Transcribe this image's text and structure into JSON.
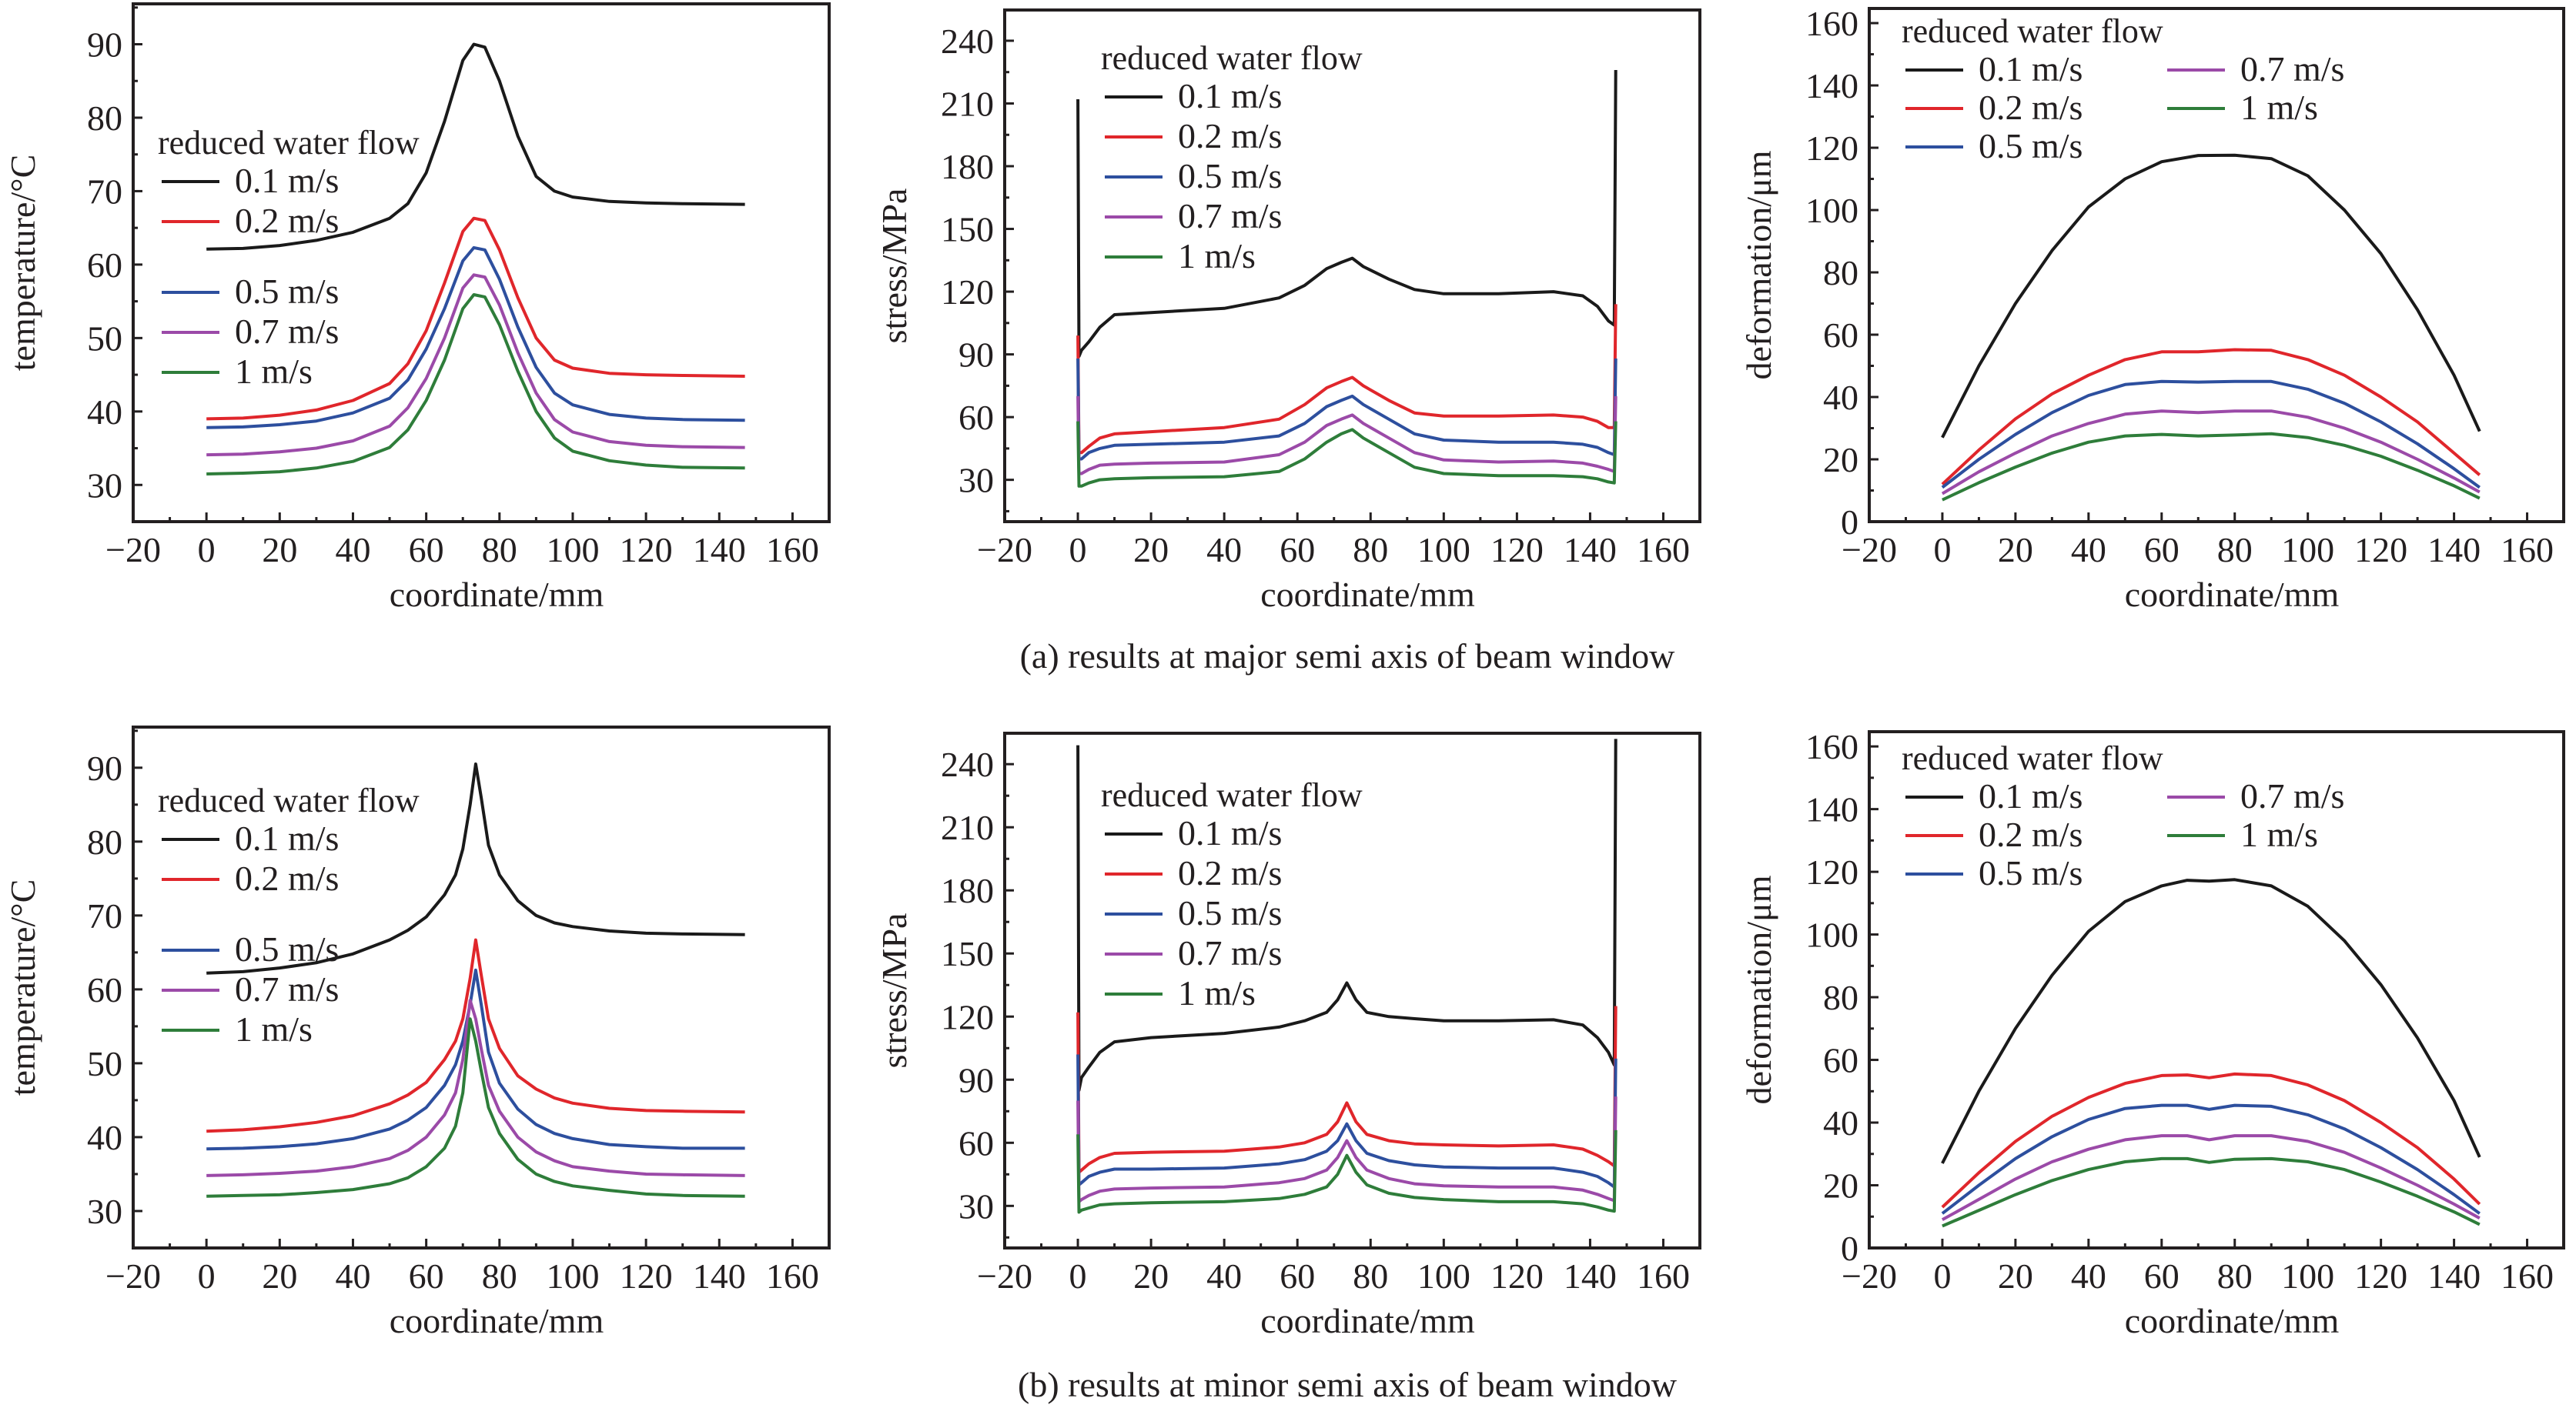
{
  "figure": {
    "captions": [
      "(a) results at major semi axis of beam window",
      "(b) results at minor semi axis of beam window"
    ]
  },
  "series_colors": {
    "0.1 m/s": "#1a1a1a",
    "0.2 m/s": "#e0262b",
    "0.5 m/s": "#2d4f9e",
    "0.7 m/s": "#9b4aa8",
    "1 m/s": "#2e7d3a"
  },
  "chart_data": [
    {
      "id": "a-temperature",
      "type": "line",
      "row": "a",
      "title": "",
      "xlabel": "coordinate/mm",
      "ylabel": "temperature/°C",
      "xlim": [
        -20,
        170
      ],
      "ylim": [
        25,
        95.5
      ],
      "xticks": [
        -20,
        0,
        20,
        40,
        60,
        80,
        100,
        120,
        140,
        160
      ],
      "yticks": [
        30,
        40,
        50,
        60,
        70,
        80,
        90
      ],
      "legend": {
        "title": "reduced water flow",
        "placement": "upper-left",
        "columns": 1,
        "gap_after": 1
      },
      "x": [
        0,
        10,
        20,
        30,
        40,
        50,
        55,
        60,
        65,
        70,
        73,
        76,
        80,
        85,
        90,
        95,
        100,
        110,
        120,
        130,
        147
      ],
      "series": [
        {
          "name": "0.1 m/s",
          "values": [
            62.1,
            62.2,
            62.6,
            63.3,
            64.4,
            66.3,
            68.3,
            72.5,
            79.5,
            87.8,
            90.0,
            89.6,
            85.0,
            77.5,
            72.0,
            70.0,
            69.2,
            68.6,
            68.4,
            68.3,
            68.2
          ]
        },
        {
          "name": "0.2 m/s",
          "values": [
            39.0,
            39.1,
            39.5,
            40.2,
            41.5,
            43.8,
            46.5,
            51.0,
            57.5,
            64.5,
            66.3,
            66.0,
            62.0,
            55.5,
            50.0,
            47.0,
            45.9,
            45.2,
            45.0,
            44.9,
            44.8
          ]
        },
        {
          "name": "0.5 m/s",
          "values": [
            37.8,
            37.9,
            38.2,
            38.7,
            39.8,
            41.8,
            44.3,
            48.5,
            54.0,
            60.5,
            62.3,
            62.0,
            58.0,
            51.5,
            46.0,
            42.5,
            40.9,
            39.6,
            39.1,
            38.9,
            38.8
          ]
        },
        {
          "name": "0.7 m/s",
          "values": [
            34.1,
            34.2,
            34.5,
            35.0,
            36.0,
            38.0,
            40.5,
            44.5,
            50.0,
            56.8,
            58.6,
            58.3,
            54.5,
            48.0,
            42.5,
            38.9,
            37.2,
            35.9,
            35.4,
            35.2,
            35.1
          ]
        },
        {
          "name": "1 m/s",
          "values": [
            31.5,
            31.6,
            31.8,
            32.3,
            33.2,
            35.1,
            37.5,
            41.5,
            47.0,
            54.0,
            55.9,
            55.6,
            51.8,
            45.5,
            40.0,
            36.4,
            34.6,
            33.3,
            32.7,
            32.4,
            32.3
          ]
        }
      ]
    },
    {
      "id": "a-stress",
      "type": "line",
      "row": "a",
      "title": "",
      "xlabel": "coordinate/mm",
      "ylabel": "stress/MPa",
      "xlim": [
        -20,
        170
      ],
      "ylim": [
        10,
        254.7
      ],
      "xticks": [
        -20,
        0,
        20,
        40,
        60,
        80,
        100,
        120,
        140,
        160
      ],
      "yticks": [
        30,
        60,
        90,
        120,
        150,
        180,
        210,
        240
      ],
      "legend": {
        "title": "reduced water flow",
        "placement": "upper-center",
        "columns": 1,
        "gap_after": 0
      },
      "x": [
        0,
        0.3,
        1,
        3,
        6,
        10,
        20,
        40,
        55,
        62,
        68,
        72,
        75,
        78,
        85,
        92,
        100,
        115,
        130,
        138,
        142,
        145,
        146.6,
        147
      ],
      "series": [
        {
          "name": "0.1 m/s",
          "values": [
            212,
            89,
            92,
            96,
            103,
            109,
            110,
            112,
            117,
            123,
            131,
            134,
            136,
            132,
            126,
            121,
            119,
            119,
            120,
            118,
            113,
            106,
            104,
            226
          ]
        },
        {
          "name": "0.2 m/s",
          "values": [
            99,
            43,
            43,
            46,
            50,
            52,
            53,
            55,
            59,
            66,
            74,
            77,
            79,
            75,
            68,
            62,
            60.5,
            60.5,
            61,
            60,
            58,
            55,
            55,
            114
          ]
        },
        {
          "name": "0.5 m/s",
          "values": [
            88,
            40,
            40,
            43,
            45,
            46.5,
            47,
            48,
            51,
            57,
            65,
            68,
            70,
            66,
            59,
            52,
            49,
            48,
            48,
            47,
            45.5,
            43,
            42,
            88
          ]
        },
        {
          "name": "0.7 m/s",
          "values": [
            70,
            33,
            33,
            35,
            37,
            37.5,
            38,
            38.5,
            42,
            48,
            56,
            59,
            61,
            57,
            50,
            43,
            39.5,
            38.5,
            39,
            38,
            36.5,
            35,
            34,
            70
          ]
        },
        {
          "name": "1 m/s",
          "values": [
            58,
            27,
            27,
            28.5,
            30,
            30.5,
            31,
            31.5,
            34,
            40,
            48,
            52,
            54,
            50,
            43,
            36,
            33,
            32,
            32,
            31.5,
            30.5,
            29,
            28.5,
            58
          ]
        }
      ]
    },
    {
      "id": "a-deformation",
      "type": "line",
      "row": "a",
      "title": "",
      "xlabel": "coordinate/mm",
      "ylabel": "deformation/μm",
      "xlim": [
        -20,
        170
      ],
      "ylim": [
        0,
        164.7
      ],
      "xticks": [
        -20,
        0,
        20,
        40,
        60,
        80,
        100,
        120,
        140,
        160
      ],
      "yticks": [
        0,
        20,
        40,
        60,
        80,
        100,
        120,
        140,
        160
      ],
      "legend": {
        "title": "reduced water flow",
        "placement": "upper-left",
        "columns": 2,
        "gap_after": 0
      },
      "x": [
        0,
        10,
        20,
        30,
        40,
        50,
        60,
        70,
        80,
        90,
        100,
        110,
        120,
        130,
        140,
        147
      ],
      "series": [
        {
          "name": "0.1 m/s",
          "values": [
            27,
            50,
            70,
            87,
            101,
            110,
            115.5,
            117.5,
            117.6,
            116.5,
            111,
            100,
            86,
            68,
            47,
            29
          ]
        },
        {
          "name": "0.2 m/s",
          "values": [
            12,
            23,
            33,
            41,
            47,
            52,
            54.5,
            54.5,
            55.2,
            55,
            52,
            47,
            40,
            32,
            22,
            15
          ]
        },
        {
          "name": "0.5 m/s",
          "values": [
            11,
            20,
            28,
            35,
            40.5,
            44,
            45,
            44.8,
            45,
            45,
            42.5,
            38,
            32,
            25,
            17,
            11
          ]
        },
        {
          "name": "0.7 m/s",
          "values": [
            9,
            16,
            22,
            27.5,
            31.5,
            34.5,
            35.5,
            35,
            35.5,
            35.5,
            33.5,
            30,
            25.5,
            20,
            14,
            9.5
          ]
        },
        {
          "name": "1 m/s",
          "values": [
            7,
            12.5,
            17.5,
            22,
            25.5,
            27.5,
            28,
            27.5,
            27.8,
            28.2,
            27,
            24.5,
            21,
            16.5,
            11.5,
            7.5
          ]
        }
      ]
    },
    {
      "id": "b-temperature",
      "type": "line",
      "row": "b",
      "title": "",
      "xlabel": "coordinate/mm",
      "ylabel": "temperature/°C",
      "xlim": [
        -20,
        170
      ],
      "ylim": [
        25,
        95.5
      ],
      "xticks": [
        -20,
        0,
        20,
        40,
        60,
        80,
        100,
        120,
        140,
        160
      ],
      "yticks": [
        30,
        40,
        50,
        60,
        70,
        80,
        90
      ],
      "legend": {
        "title": "reduced water flow",
        "placement": "upper-left",
        "columns": 1,
        "gap_after": 1
      },
      "x": [
        0,
        10,
        20,
        30,
        40,
        50,
        55,
        60,
        65,
        68,
        70,
        72,
        73.5,
        75,
        77,
        80,
        85,
        90,
        95,
        100,
        110,
        120,
        130,
        147
      ],
      "series": [
        {
          "name": "0.1 m/s",
          "values": [
            62.2,
            62.4,
            62.9,
            63.6,
            64.8,
            66.7,
            68.0,
            69.8,
            72.8,
            75.5,
            79.0,
            85.0,
            90.5,
            86.0,
            79.5,
            75.5,
            72.0,
            70.0,
            69.0,
            68.5,
            67.9,
            67.6,
            67.5,
            67.4
          ]
        },
        {
          "name": "0.2 m/s",
          "values": [
            40.8,
            41.0,
            41.4,
            42.0,
            42.9,
            44.5,
            45.7,
            47.4,
            50.5,
            53.0,
            56.0,
            61.5,
            66.7,
            62.0,
            56.0,
            52.0,
            48.3,
            46.5,
            45.3,
            44.6,
            43.9,
            43.6,
            43.5,
            43.4
          ]
        },
        {
          "name": "0.5 m/s",
          "values": [
            38.4,
            38.5,
            38.7,
            39.1,
            39.8,
            41.1,
            42.3,
            44.0,
            47.0,
            49.8,
            53.0,
            58.0,
            62.6,
            58.0,
            51.5,
            47.3,
            43.8,
            41.7,
            40.5,
            39.8,
            39.0,
            38.7,
            38.5,
            38.5
          ]
        },
        {
          "name": "0.7 m/s",
          "values": [
            34.8,
            34.9,
            35.1,
            35.4,
            36.0,
            37.1,
            38.2,
            40.0,
            43.0,
            46.0,
            50.5,
            58.5,
            56.0,
            52.0,
            47.0,
            43.5,
            40.0,
            38.0,
            36.8,
            36.0,
            35.4,
            35.0,
            34.9,
            34.8
          ]
        },
        {
          "name": "1 m/s",
          "values": [
            32.0,
            32.1,
            32.2,
            32.5,
            32.9,
            33.7,
            34.5,
            36.0,
            38.5,
            41.5,
            46.0,
            56.0,
            53.0,
            49.0,
            44.0,
            40.5,
            37.0,
            35.0,
            34.0,
            33.4,
            32.8,
            32.3,
            32.1,
            32.0
          ]
        }
      ]
    },
    {
      "id": "b-stress",
      "type": "line",
      "row": "b",
      "title": "",
      "xlabel": "coordinate/mm",
      "ylabel": "stress/MPa",
      "xlim": [
        -20,
        170
      ],
      "ylim": [
        10,
        254.7
      ],
      "xticks": [
        -20,
        0,
        20,
        40,
        60,
        80,
        100,
        120,
        140,
        160
      ],
      "yticks": [
        30,
        60,
        90,
        120,
        150,
        180,
        210,
        240
      ],
      "legend": {
        "title": "reduced water flow",
        "placement": "upper-center",
        "columns": 1,
        "gap_after": 0
      },
      "x": [
        0,
        0.3,
        1,
        3,
        6,
        10,
        20,
        40,
        55,
        62,
        68,
        71,
        73.5,
        76,
        79,
        85,
        92,
        100,
        115,
        130,
        138,
        142,
        145,
        146.6,
        147
      ],
      "series": [
        {
          "name": "0.1 m/s",
          "values": [
            249,
            85,
            91,
            96,
            103,
            108,
            110,
            112,
            115,
            118,
            122,
            128,
            136,
            128,
            122,
            120,
            119,
            118,
            118,
            118.5,
            116,
            110,
            103,
            97,
            252
          ]
        },
        {
          "name": "0.2 m/s",
          "values": [
            122,
            46,
            47,
            50,
            53,
            55,
            55.5,
            56,
            58,
            60,
            64,
            70,
            79,
            70,
            64,
            61,
            59.5,
            59,
            58.5,
            59,
            57,
            54,
            51,
            49,
            125
          ]
        },
        {
          "name": "0.5 m/s",
          "values": [
            102,
            40,
            41,
            44,
            46,
            47.5,
            47.5,
            48,
            50,
            52,
            56,
            61,
            69,
            61,
            55,
            51.5,
            49.5,
            48.5,
            48,
            48,
            46,
            44,
            41,
            39,
            100
          ]
        },
        {
          "name": "0.7 m/s",
          "values": [
            80,
            32,
            33,
            35,
            37,
            38,
            38.5,
            39,
            41,
            43,
            47,
            53,
            61,
            53,
            47,
            43,
            40.5,
            39.5,
            39,
            39,
            37.5,
            35.5,
            33.5,
            32.5,
            82
          ]
        },
        {
          "name": "1 m/s",
          "values": [
            64,
            27,
            28,
            29,
            30.5,
            31,
            31.5,
            32,
            33.5,
            35.5,
            39,
            45,
            54,
            46,
            40,
            36,
            34,
            33,
            32,
            32,
            31,
            29.5,
            28,
            27.5,
            66
          ]
        }
      ]
    },
    {
      "id": "b-deformation",
      "type": "line",
      "row": "b",
      "title": "",
      "xlabel": "coordinate/mm",
      "ylabel": "deformation/μm",
      "xlim": [
        -20,
        170
      ],
      "ylim": [
        0,
        164.7
      ],
      "xticks": [
        -20,
        0,
        20,
        40,
        60,
        80,
        100,
        120,
        140,
        160
      ],
      "yticks": [
        0,
        20,
        40,
        60,
        80,
        100,
        120,
        140,
        160
      ],
      "legend": {
        "title": "reduced water flow",
        "placement": "upper-left",
        "columns": 2,
        "gap_after": 0
      },
      "x": [
        0,
        10,
        20,
        30,
        40,
        50,
        60,
        67,
        73,
        80,
        90,
        100,
        110,
        120,
        130,
        140,
        147
      ],
      "series": [
        {
          "name": "0.1 m/s",
          "values": [
            27,
            50,
            70,
            87,
            101,
            110.5,
            115.5,
            117.3,
            117,
            117.5,
            115.5,
            109,
            98,
            84,
            67,
            47,
            29
          ]
        },
        {
          "name": "0.2 m/s",
          "values": [
            13,
            24,
            34,
            42,
            48,
            52.5,
            55,
            55.2,
            54.3,
            55.5,
            55,
            52,
            47,
            40,
            32,
            22,
            14
          ]
        },
        {
          "name": "0.5 m/s",
          "values": [
            11,
            20,
            28.5,
            35.5,
            41,
            44.5,
            45.5,
            45.5,
            44.2,
            45.5,
            45.2,
            42.5,
            38,
            32,
            25,
            17,
            11
          ]
        },
        {
          "name": "0.7 m/s",
          "values": [
            9,
            15.5,
            22,
            27.5,
            31.5,
            34.5,
            35.8,
            35.8,
            34.5,
            35.8,
            35.8,
            34,
            30.5,
            25.5,
            20,
            14,
            9.5
          ]
        },
        {
          "name": "1 m/s",
          "values": [
            7,
            12,
            17,
            21.5,
            25,
            27.5,
            28.5,
            28.5,
            27.3,
            28.3,
            28.5,
            27.5,
            25,
            21,
            16.5,
            11.5,
            7.5
          ]
        }
      ]
    }
  ]
}
